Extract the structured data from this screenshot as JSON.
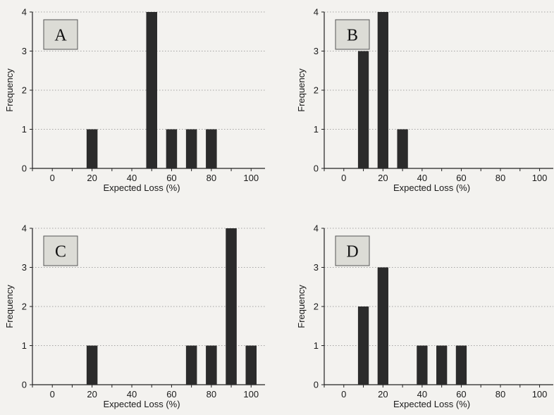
{
  "chart_data": [
    {
      "type": "bar",
      "panel_label": "A",
      "xlabel": "Expected Loss (%)",
      "ylabel": "Frequency",
      "xlim": [
        -10,
        107
      ],
      "ylim": [
        0,
        4
      ],
      "xticks": [
        0,
        20,
        40,
        60,
        80,
        100
      ],
      "yticks": [
        0,
        1,
        2,
        3,
        4
      ],
      "grid": "horizontal dotted",
      "x": [
        20,
        50,
        60,
        70,
        80
      ],
      "values": [
        1,
        4,
        1,
        1,
        1
      ]
    },
    {
      "type": "bar",
      "panel_label": "B",
      "xlabel": "Expected Loss (%)",
      "ylabel": "Frequency",
      "xlim": [
        -10,
        107
      ],
      "ylim": [
        0,
        4
      ],
      "xticks": [
        0,
        20,
        40,
        60,
        80,
        100
      ],
      "yticks": [
        0,
        1,
        2,
        3,
        4
      ],
      "grid": "horizontal dotted",
      "x": [
        10,
        20,
        30
      ],
      "values": [
        3,
        4,
        1
      ]
    },
    {
      "type": "bar",
      "panel_label": "C",
      "xlabel": "Expected Loss (%)",
      "ylabel": "Frequency",
      "xlim": [
        -10,
        107
      ],
      "ylim": [
        0,
        4
      ],
      "xticks": [
        0,
        20,
        40,
        60,
        80,
        100
      ],
      "yticks": [
        0,
        1,
        2,
        3,
        4
      ],
      "grid": "horizontal dotted",
      "x": [
        20,
        70,
        80,
        90,
        100
      ],
      "values": [
        1,
        1,
        1,
        4,
        1
      ]
    },
    {
      "type": "bar",
      "panel_label": "D",
      "xlabel": "Expected Loss (%)",
      "ylabel": "Frequency",
      "xlim": [
        -10,
        107
      ],
      "ylim": [
        0,
        4
      ],
      "xticks": [
        0,
        20,
        40,
        60,
        80,
        100
      ],
      "yticks": [
        0,
        1,
        2,
        3,
        4
      ],
      "grid": "horizontal dotted",
      "x": [
        10,
        20,
        40,
        50,
        60
      ],
      "values": [
        2,
        3,
        1,
        1,
        1
      ]
    }
  ],
  "colors": {
    "bar": "#2b2b2b",
    "axis": "#222222",
    "grid": "#8a8a8a",
    "label_box_fill": "#dcdcd6",
    "label_box_stroke": "#555555"
  }
}
